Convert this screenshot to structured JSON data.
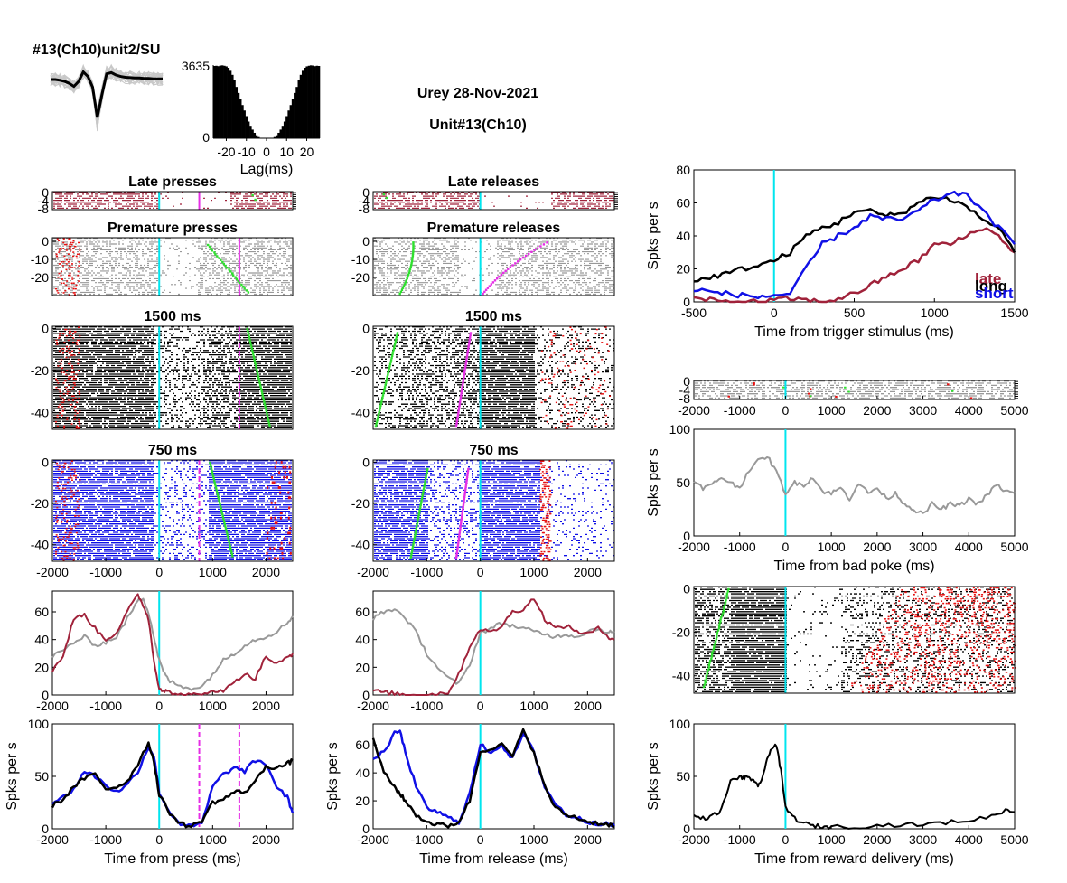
{
  "header": {
    "unit_label": "#13(Ch10)unit2/SU",
    "session_title": "Urey 28-Nov-2021",
    "unit_title": "Unit#13(Ch10)"
  },
  "colors": {
    "black": "#000000",
    "gray": "#999999",
    "lightgray": "#c8c8c8",
    "maroon": "#a0223a",
    "blue": "#1010e6",
    "cyan": "#00e5ee",
    "magenta": "#e62ee6",
    "green": "#2ee02e",
    "red": "#e61010"
  },
  "chart_data": [
    {
      "id": "waveform",
      "type": "line",
      "title": "",
      "description_series": [
        {
          "name": "",
          "color": "black",
          "values": [
            0,
            0,
            -0.02,
            -0.05,
            -0.1,
            -0.18,
            -0.05,
            0.2,
            0.08,
            -0.2,
            -1.0,
            -0.4,
            0.15,
            0.18,
            0.12,
            0.08,
            0.06,
            0.05,
            0.04,
            0.04,
            0.03,
            0.03,
            0.02,
            0.02,
            0.02
          ]
        }
      ]
    },
    {
      "id": "autocorr",
      "type": "bar",
      "xlabel": "Lag(ms)",
      "ylim": [
        0,
        3635
      ],
      "yticks": [
        "0",
        "3635"
      ],
      "xticks": [
        "-20",
        "-10",
        "0",
        "10",
        "20"
      ],
      "x": [
        -26,
        -25,
        -24,
        -23,
        -22,
        -21,
        -20,
        -19,
        -18,
        -17,
        -16,
        -15,
        -14,
        -13,
        -12,
        -11,
        -10,
        -9,
        -8,
        -7,
        -6,
        -5,
        -4,
        -3,
        -2,
        -1,
        0,
        1,
        2,
        3,
        4,
        5,
        6,
        7,
        8,
        9,
        10,
        11,
        12,
        13,
        14,
        15,
        16,
        17,
        18,
        19,
        20,
        21,
        22,
        23,
        24,
        25,
        26
      ],
      "values": [
        3590,
        3600,
        3580,
        3610,
        3620,
        3600,
        3570,
        3500,
        3350,
        3150,
        2900,
        2550,
        2250,
        1950,
        1650,
        1380,
        1100,
        830,
        620,
        430,
        270,
        150,
        60,
        20,
        0,
        0,
        0,
        0,
        0,
        20,
        60,
        150,
        270,
        430,
        620,
        830,
        1100,
        1380,
        1650,
        1950,
        2250,
        2550,
        2900,
        3150,
        3350,
        3500,
        3570,
        3600,
        3620,
        3610,
        3580,
        3600,
        3590
      ]
    },
    {
      "id": "raster-late-presses",
      "type": "scatter",
      "title": "Late presses",
      "yticks": [
        "0",
        "-4",
        "-8"
      ],
      "series": [
        {
          "name": "",
          "color": "maroon"
        }
      ],
      "markers": {
        "cyan_x": 0,
        "magenta_x": 750,
        "green_x": 1000
      }
    },
    {
      "id": "raster-late-releases",
      "type": "scatter",
      "title": "Late releases",
      "yticks": [
        "0",
        "-4",
        "-8"
      ],
      "series": [
        {
          "name": "",
          "color": "maroon"
        }
      ],
      "markers": {
        "cyan_x": 0
      }
    },
    {
      "id": "raster-premature-presses",
      "type": "scatter",
      "title": "Premature presses",
      "yticks": [
        "0",
        "-10",
        "-20"
      ],
      "series": [
        {
          "name": "",
          "color": "gray"
        }
      ],
      "markers": {
        "cyan_x": 0,
        "magenta_x": 1500
      }
    },
    {
      "id": "raster-premature-releases",
      "type": "scatter",
      "title": "Premature releases",
      "yticks": [
        "0",
        "-10",
        "-20"
      ],
      "series": [
        {
          "name": "",
          "color": "gray"
        }
      ],
      "markers": {
        "cyan_x": 0
      }
    },
    {
      "id": "raster-1500-press",
      "type": "scatter",
      "title": "1500 ms",
      "yticks": [
        "0",
        "-20",
        "-40"
      ],
      "series": [
        {
          "name": "",
          "color": "black"
        }
      ],
      "markers": {
        "cyan_x": 0,
        "magenta_x": 1500
      }
    },
    {
      "id": "raster-1500-release",
      "type": "scatter",
      "title": "1500 ms",
      "yticks": [
        "0",
        "-20",
        "-40"
      ],
      "series": [
        {
          "name": "",
          "color": "black"
        }
      ],
      "markers": {
        "cyan_x": 0
      }
    },
    {
      "id": "raster-750-press",
      "type": "scatter",
      "title": "750 ms",
      "yticks": [
        "0",
        "-20",
        "-40"
      ],
      "xticks": [
        "-2000",
        "-1000",
        "0",
        "1000",
        "2000"
      ],
      "series": [
        {
          "name": "",
          "color": "blue"
        }
      ],
      "markers": {
        "cyan_x": 0,
        "magenta_x": 750
      }
    },
    {
      "id": "raster-750-release",
      "type": "scatter",
      "title": "750 ms",
      "yticks": [
        "0",
        "-20",
        "-40"
      ],
      "xticks": [
        "-2000",
        "-1000",
        "0",
        "1000",
        "2000"
      ],
      "series": [
        {
          "name": "",
          "color": "blue"
        }
      ],
      "markers": {
        "cyan_x": 0
      }
    },
    {
      "id": "psth-press-late-premature",
      "type": "line",
      "xlim": [
        -2000,
        2500
      ],
      "ylim": [
        0,
        75
      ],
      "xticks": [
        "-2000",
        "-1000",
        "0",
        "1000",
        "2000"
      ],
      "yticks": [
        "0",
        "20",
        "40",
        "60"
      ],
      "x": [
        -2000,
        -1800,
        -1600,
        -1400,
        -1200,
        -1000,
        -800,
        -600,
        -400,
        -300,
        -200,
        -100,
        0,
        100,
        200,
        400,
        600,
        800,
        1000,
        1200,
        1400,
        1600,
        1800,
        2000,
        2200,
        2400,
        2500
      ],
      "series": [
        {
          "name": "",
          "color": "gray",
          "values": [
            28,
            32,
            38,
            42,
            36,
            38,
            42,
            55,
            68,
            70,
            60,
            42,
            25,
            15,
            10,
            6,
            5,
            6,
            15,
            25,
            30,
            36,
            40,
            42,
            46,
            52,
            57
          ]
        },
        {
          "name": "",
          "color": "maroon",
          "values": [
            18,
            28,
            55,
            58,
            48,
            40,
            45,
            60,
            72,
            65,
            55,
            25,
            5,
            3,
            2,
            0,
            0,
            0,
            4,
            2,
            10,
            15,
            12,
            28,
            22,
            27,
            30
          ]
        }
      ]
    },
    {
      "id": "psth-release-late-premature",
      "type": "line",
      "xlim": [
        -2000,
        2500
      ],
      "ylim": [
        0,
        75
      ],
      "xticks": [
        "-2000",
        "-1000",
        "0",
        "1000",
        "2000"
      ],
      "yticks": [
        "0",
        "20",
        "40",
        "60"
      ],
      "x": [
        -2000,
        -1800,
        -1600,
        -1400,
        -1200,
        -1000,
        -800,
        -600,
        -400,
        -200,
        0,
        200,
        400,
        600,
        800,
        1000,
        1200,
        1400,
        1600,
        1800,
        2000,
        2200,
        2400,
        2500
      ],
      "series": [
        {
          "name": "",
          "color": "gray",
          "values": [
            55,
            60,
            62,
            56,
            45,
            30,
            20,
            12,
            8,
            22,
            45,
            48,
            52,
            50,
            48,
            46,
            44,
            42,
            44,
            42,
            46,
            48,
            45,
            46
          ]
        },
        {
          "name": "",
          "color": "maroon",
          "values": [
            3,
            2,
            1,
            0,
            0,
            0,
            1,
            2,
            15,
            35,
            48,
            45,
            50,
            60,
            62,
            70,
            55,
            48,
            50,
            46,
            44,
            48,
            42,
            40
          ]
        }
      ]
    },
    {
      "id": "psth-press-750-1500",
      "type": "line",
      "xlim": [
        -2000,
        2500
      ],
      "ylim": [
        0,
        100
      ],
      "xticks": [
        "-2000",
        "-1000",
        "0",
        "1000",
        "2000"
      ],
      "yticks": [
        "0",
        "50",
        "100"
      ],
      "ylabel": "Spks per s",
      "xlabel": "Time from press (ms)",
      "markers": {
        "cyan_x": 0,
        "magenta_x": [
          750,
          1500
        ]
      },
      "x": [
        -2000,
        -1800,
        -1600,
        -1400,
        -1200,
        -1000,
        -800,
        -600,
        -400,
        -200,
        -100,
        0,
        200,
        400,
        600,
        800,
        1000,
        1200,
        1400,
        1600,
        1800,
        2000,
        2200,
        2400,
        2500
      ],
      "series": [
        {
          "name": "",
          "color": "blue",
          "values": [
            25,
            30,
            38,
            55,
            50,
            42,
            35,
            42,
            55,
            78,
            70,
            35,
            15,
            5,
            2,
            5,
            40,
            52,
            58,
            55,
            65,
            62,
            40,
            30,
            15
          ]
        },
        {
          "name": "",
          "color": "black",
          "values": [
            22,
            28,
            40,
            48,
            52,
            38,
            40,
            45,
            62,
            82,
            65,
            32,
            15,
            5,
            2,
            8,
            25,
            28,
            35,
            35,
            45,
            60,
            58,
            62,
            65
          ]
        }
      ]
    },
    {
      "id": "psth-release-750-1500",
      "type": "line",
      "xlim": [
        -2000,
        2500
      ],
      "ylim": [
        0,
        75
      ],
      "xticks": [
        "-2000",
        "-1000",
        "0",
        "1000",
        "2000"
      ],
      "yticks": [
        "0",
        "20",
        "40",
        "60"
      ],
      "ylabel": "Spks per s",
      "xlabel": "Time from release (ms)",
      "markers": {
        "cyan_x": 0
      },
      "x": [
        -2000,
        -1800,
        -1600,
        -1500,
        -1400,
        -1200,
        -1000,
        -800,
        -600,
        -400,
        -200,
        0,
        200,
        400,
        600,
        800,
        1000,
        1200,
        1400,
        1600,
        1800,
        2000,
        2200,
        2400,
        2500
      ],
      "series": [
        {
          "name": "",
          "color": "blue",
          "values": [
            50,
            55,
            68,
            70,
            55,
            30,
            15,
            12,
            8,
            5,
            25,
            60,
            55,
            60,
            50,
            68,
            55,
            30,
            18,
            10,
            8,
            5,
            4,
            3,
            2
          ]
        },
        {
          "name": "",
          "color": "black",
          "values": [
            65,
            40,
            30,
            25,
            20,
            10,
            5,
            3,
            2,
            5,
            20,
            55,
            58,
            60,
            52,
            70,
            55,
            30,
            15,
            10,
            8,
            5,
            4,
            3,
            2
          ]
        }
      ]
    },
    {
      "id": "psth-trigger",
      "type": "line",
      "xlim": [
        -500,
        1500
      ],
      "ylim": [
        0,
        80
      ],
      "xticks": [
        "-500",
        "0",
        "500",
        "1000",
        "1500"
      ],
      "yticks": [
        "0",
        "20",
        "40",
        "60",
        "80"
      ],
      "ylabel": "Spks per s",
      "xlabel": "Time from trigger stimulus (ms)",
      "legend": [
        "late",
        "long",
        "short"
      ],
      "markers": {
        "cyan_x": 0
      },
      "x": [
        -500,
        -400,
        -300,
        -200,
        -100,
        0,
        100,
        200,
        300,
        400,
        500,
        600,
        700,
        800,
        900,
        1000,
        1100,
        1200,
        1300,
        1400,
        1500
      ],
      "series": [
        {
          "name": "late",
          "color": "maroon",
          "values": [
            2,
            1,
            0,
            0,
            0,
            1,
            2,
            1,
            0,
            2,
            5,
            10,
            15,
            20,
            25,
            35,
            35,
            40,
            45,
            40,
            30
          ]
        },
        {
          "name": "long",
          "color": "black",
          "values": [
            12,
            15,
            17,
            20,
            22,
            25,
            30,
            40,
            45,
            48,
            55,
            55,
            52,
            54,
            60,
            64,
            62,
            58,
            50,
            45,
            30
          ]
        },
        {
          "name": "short",
          "color": "blue",
          "values": [
            8,
            6,
            5,
            4,
            3,
            4,
            5,
            20,
            35,
            40,
            45,
            52,
            50,
            50,
            55,
            62,
            65,
            66,
            55,
            45,
            35
          ]
        }
      ]
    },
    {
      "id": "raster-bad-poke",
      "type": "scatter",
      "xlim": [
        -2000,
        5000
      ],
      "yticks": [
        "0",
        "-4",
        "-8"
      ],
      "xticks": [
        "-2000",
        "-1000",
        "0",
        "1000",
        "2000",
        "3000",
        "4000",
        "5000"
      ],
      "series": [
        {
          "name": "",
          "color": "gray"
        }
      ],
      "markers": {
        "cyan_x": 0
      }
    },
    {
      "id": "psth-bad-poke",
      "type": "line",
      "xlim": [
        -2000,
        5000
      ],
      "ylim": [
        0,
        100
      ],
      "xticks": [
        "-2000",
        "-1000",
        "0",
        "1000",
        "2000",
        "3000",
        "4000",
        "5000"
      ],
      "yticks": [
        "0",
        "50",
        "100"
      ],
      "ylabel": "Spks per s",
      "xlabel": "Time from bad poke (ms)",
      "markers": {
        "cyan_x": 0
      },
      "x": [
        -2000,
        -1800,
        -1600,
        -1400,
        -1200,
        -1000,
        -800,
        -600,
        -400,
        -200,
        0,
        200,
        400,
        600,
        800,
        1000,
        1200,
        1400,
        1600,
        1800,
        2000,
        2200,
        2400,
        2600,
        2800,
        3000,
        3200,
        3400,
        3600,
        3800,
        4000,
        4200,
        4400,
        4600,
        4800,
        5000
      ],
      "series": [
        {
          "name": "",
          "color": "gray",
          "values": [
            50,
            45,
            48,
            55,
            50,
            45,
            62,
            70,
            75,
            60,
            40,
            50,
            48,
            55,
            42,
            40,
            45,
            35,
            50,
            40,
            45,
            35,
            40,
            30,
            25,
            20,
            30,
            25,
            30,
            28,
            35,
            30,
            38,
            48,
            42,
            40
          ]
        }
      ]
    },
    {
      "id": "raster-reward",
      "type": "scatter",
      "xlim": [
        -2000,
        5000
      ],
      "yticks": [
        "0",
        "-20",
        "-40"
      ],
      "series": [
        {
          "name": "",
          "color": "black"
        },
        {
          "name": "",
          "color": "red"
        }
      ],
      "markers": {
        "cyan_x": 0
      }
    },
    {
      "id": "psth-reward",
      "type": "line",
      "xlim": [
        -2000,
        5000
      ],
      "ylim": [
        0,
        100
      ],
      "xticks": [
        "-2000",
        "-1000",
        "0",
        "1000",
        "2000",
        "3000",
        "4000",
        "5000"
      ],
      "yticks": [
        "0",
        "50",
        "100"
      ],
      "ylabel": "Spks per s",
      "xlabel": "Time from reward delivery (ms)",
      "markers": {
        "cyan_x": 0
      },
      "x": [
        -2000,
        -1800,
        -1600,
        -1400,
        -1200,
        -1000,
        -900,
        -800,
        -700,
        -600,
        -500,
        -400,
        -300,
        -200,
        -100,
        0,
        200,
        400,
        600,
        800,
        1000,
        1500,
        2000,
        2500,
        3000,
        3500,
        4000,
        4500,
        4800,
        5000
      ],
      "series": [
        {
          "name": "",
          "color": "black",
          "values": [
            12,
            10,
            12,
            18,
            45,
            50,
            48,
            50,
            45,
            40,
            50,
            65,
            78,
            80,
            55,
            20,
            10,
            5,
            3,
            2,
            2,
            2,
            3,
            4,
            4,
            6,
            8,
            12,
            18,
            16
          ]
        }
      ]
    }
  ]
}
